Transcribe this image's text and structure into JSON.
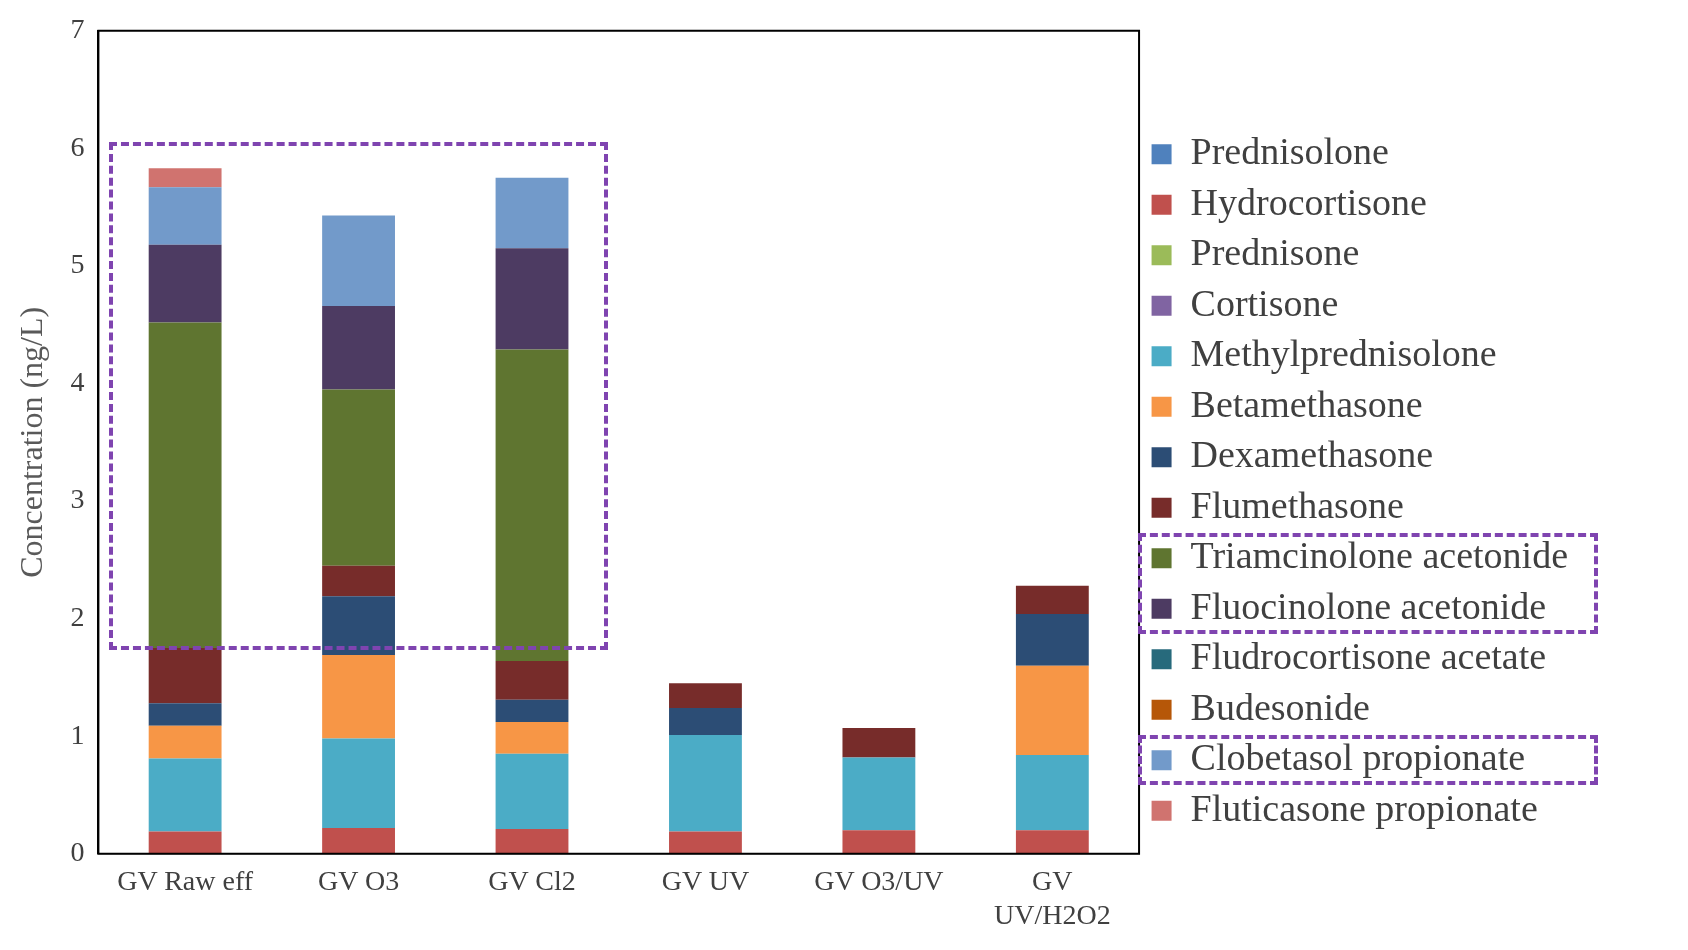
{
  "chart_data": {
    "type": "bar",
    "stacked": true,
    "ylabel": "Concentration (ng/L)",
    "categories": [
      "GV Raw eff",
      "GV O3",
      "GV Cl2",
      "GV UV",
      "GV O3/UV",
      "GV UV/H2O2"
    ],
    "ylim": [
      0,
      7
    ],
    "yticks": [
      0,
      1,
      2,
      3,
      4,
      5,
      6,
      7
    ],
    "grid": false,
    "legend": "right",
    "series": [
      {
        "name": "Prednisolone",
        "color": "#4f81bd",
        "values": [
          0,
          0,
          0,
          0,
          0,
          0
        ]
      },
      {
        "name": "Hydrocortisone",
        "color": "#c0504d",
        "values": [
          0.19,
          0.22,
          0.21,
          0.19,
          0.2,
          0.2
        ]
      },
      {
        "name": "Prednisone",
        "color": "#9bbb59",
        "values": [
          0,
          0,
          0,
          0,
          0,
          0
        ]
      },
      {
        "name": "Cortisone",
        "color": "#8064a2",
        "values": [
          0,
          0,
          0,
          0,
          0,
          0
        ]
      },
      {
        "name": "Methylprednisolone",
        "color": "#4bacc6",
        "values": [
          0.62,
          0.76,
          0.64,
          0.82,
          0.62,
          0.64
        ]
      },
      {
        "name": "Betamethasone",
        "color": "#f79646",
        "values": [
          0.28,
          0.71,
          0.27,
          0,
          0,
          0.76
        ]
      },
      {
        "name": "Dexamethasone",
        "color": "#2c4d75",
        "values": [
          0.19,
          0.5,
          0.19,
          0.23,
          0,
          0.44
        ]
      },
      {
        "name": "Flumethasone",
        "color": "#772c2a",
        "values": [
          0.47,
          0.26,
          0.33,
          0.21,
          0.25,
          0.24
        ]
      },
      {
        "name": "Triamcinolone acetonide",
        "color": "#5f7530",
        "values": [
          2.77,
          1.5,
          2.65,
          0,
          0,
          0
        ]
      },
      {
        "name": "Fluocinolone acetonide",
        "color": "#4d3b62",
        "values": [
          0.66,
          0.71,
          0.86,
          0,
          0,
          0
        ]
      },
      {
        "name": "Fludrocortisone acetate",
        "color": "#276a7c",
        "values": [
          0,
          0,
          0,
          0,
          0,
          0
        ]
      },
      {
        "name": "Budesonide",
        "color": "#b65708",
        "values": [
          0,
          0,
          0,
          0,
          0,
          0
        ]
      },
      {
        "name": "Clobetasol propionate",
        "color": "#729aca",
        "values": [
          0.49,
          0.77,
          0.6,
          0,
          0,
          0
        ]
      },
      {
        "name": "Fluticasone propionate",
        "color": "#d0736f",
        "values": [
          0.16,
          0,
          0,
          0,
          0,
          0
        ]
      }
    ]
  }
}
